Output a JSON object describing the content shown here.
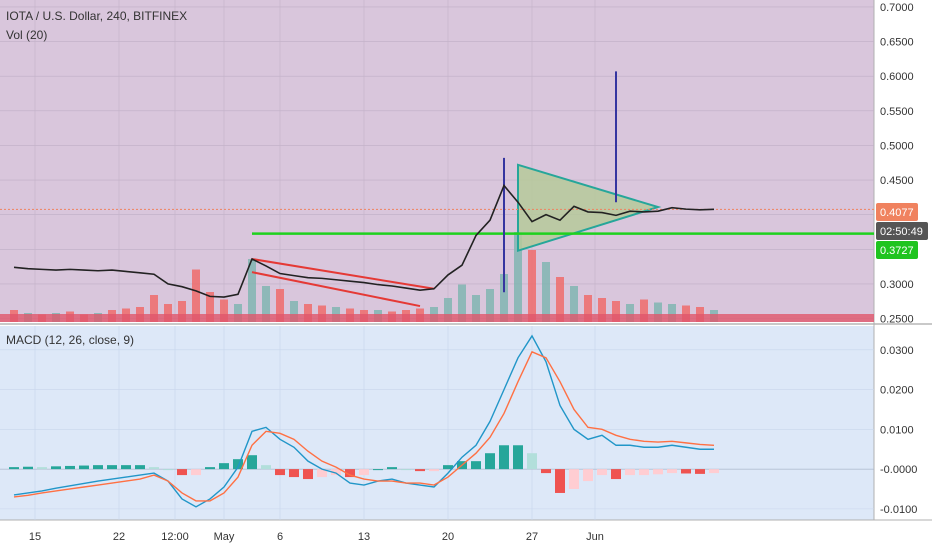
{
  "header": {
    "symbol_line": "IOTA / U.S. Dollar, 240, BITFINEX",
    "volume_label": "Vol (20)",
    "macd_label": "MACD (12, 26, close, 9)"
  },
  "price_tags": {
    "last_price": "0.4077",
    "countdown": "02:50:49",
    "support_level": "0.3727"
  },
  "colors": {
    "price_bg": "#d9c6dc",
    "macd_bg": "#dde8f8",
    "wedge": "#e53935",
    "triangle_fill": "#b5c99a",
    "triangle_stroke": "#26a69a",
    "support_line": "#1ed11e",
    "target_line": "#3535a0",
    "volume_up": "#80b5b2",
    "volume_down": "#ef6b6b",
    "macd_line": "#2196c8",
    "signal_line": "#ff7043",
    "hist_up_strong": "#26a69a",
    "hist_up_weak": "#b2dfdb",
    "hist_down_strong": "#ef5350",
    "hist_down_weak": "#ffcdd2",
    "last_tag": "#f0825f",
    "countdown_tag": "#555555",
    "support_tag": "#1fc41f"
  },
  "chart_data": [
    {
      "type": "line",
      "panel": "price",
      "y_ticks": [
        "0.7000",
        "0.6500",
        "0.6000",
        "0.5500",
        "0.5000",
        "0.4500",
        "0.4000",
        "0.3500",
        "0.3000",
        "0.2500"
      ],
      "ylim": [
        0.245,
        0.71
      ],
      "x": [
        0,
        1,
        2,
        3,
        4,
        5,
        6,
        7,
        8,
        9,
        10,
        11,
        12,
        13,
        14,
        15,
        16,
        17,
        18,
        19,
        20,
        21,
        22,
        23,
        24,
        25,
        26,
        27,
        28,
        29,
        30,
        31,
        32,
        33,
        34,
        35,
        36,
        37,
        38,
        39,
        40,
        41,
        42,
        43,
        44,
        45,
        46,
        47,
        48,
        49,
        50
      ],
      "close": [
        0.324,
        0.322,
        0.321,
        0.32,
        0.321,
        0.32,
        0.319,
        0.32,
        0.318,
        0.316,
        0.314,
        0.3,
        0.296,
        0.29,
        0.282,
        0.281,
        0.285,
        0.336,
        0.326,
        0.315,
        0.312,
        0.309,
        0.308,
        0.306,
        0.304,
        0.302,
        0.299,
        0.297,
        0.294,
        0.291,
        0.293,
        0.313,
        0.327,
        0.37,
        0.392,
        0.442,
        0.418,
        0.39,
        0.4,
        0.392,
        0.412,
        0.404,
        0.403,
        0.399,
        0.405,
        0.404,
        0.405,
        0.41,
        0.408,
        0.407,
        0.4077
      ],
      "annotations": {
        "support_level": 0.3727,
        "last_price": 0.4077,
        "wedge_upper": [
          [
            0.336,
            17
          ],
          [
            0.293,
            30
          ]
        ],
        "wedge_lower": [
          [
            0.317,
            17
          ],
          [
            0.268,
            29
          ]
        ],
        "triangle": [
          [
            0.472,
            36
          ],
          [
            0.348,
            36
          ],
          [
            0.411,
            46
          ]
        ],
        "target_line": [
          [
            0.418,
            43
          ],
          [
            0.607,
            43
          ]
        ],
        "vertical_move": [
          [
            0.288,
            35
          ],
          [
            0.482,
            35
          ]
        ]
      },
      "volume": [
        8,
        6,
        5,
        6,
        7,
        5,
        6,
        8,
        9,
        10,
        18,
        12,
        14,
        35,
        20,
        15,
        12,
        42,
        24,
        22,
        14,
        12,
        11,
        10,
        9,
        8,
        8,
        7,
        8,
        9,
        10,
        16,
        25,
        18,
        22,
        32,
        60,
        48,
        40,
        30,
        24,
        18,
        16,
        14,
        12,
        15,
        13,
        12,
        11,
        10,
        8
      ],
      "volume_up": [
        false,
        true,
        false,
        true,
        false,
        false,
        true,
        false,
        false,
        false,
        false,
        false,
        false,
        false,
        false,
        false,
        true,
        true,
        true,
        false,
        true,
        false,
        false,
        true,
        false,
        false,
        true,
        false,
        false,
        false,
        true,
        true,
        true,
        true,
        true,
        true,
        true,
        false,
        true,
        false,
        true,
        false,
        false,
        false,
        true,
        false,
        true,
        true,
        false,
        false,
        true
      ]
    },
    {
      "type": "line",
      "panel": "macd",
      "title": "MACD (12, 26, close, 9)",
      "y_ticks": [
        "0.0300",
        "0.0200",
        "0.0100",
        "-0.0000",
        "-0.0100"
      ],
      "ylim": [
        -0.0128,
        0.036
      ],
      "x": [
        0,
        1,
        2,
        3,
        4,
        5,
        6,
        7,
        8,
        9,
        10,
        11,
        12,
        13,
        14,
        15,
        16,
        17,
        18,
        19,
        20,
        21,
        22,
        23,
        24,
        25,
        26,
        27,
        28,
        29,
        30,
        31,
        32,
        33,
        34,
        35,
        36,
        37,
        38,
        39,
        40,
        41,
        42,
        43,
        44,
        45,
        46,
        47,
        48,
        49,
        50
      ],
      "series": [
        {
          "name": "MACD",
          "values": [
            -0.0065,
            -0.006,
            -0.0055,
            -0.0048,
            -0.0042,
            -0.0036,
            -0.003,
            -0.0025,
            -0.002,
            -0.0015,
            -0.001,
            -0.003,
            -0.0075,
            -0.0095,
            -0.0075,
            -0.0045,
            0.0005,
            0.0095,
            0.0105,
            0.0075,
            0.0055,
            0.002,
            0.0,
            -0.001,
            -0.0035,
            -0.004,
            -0.003,
            -0.0025,
            -0.0035,
            -0.004,
            -0.0045,
            -0.001,
            0.003,
            0.006,
            0.012,
            0.02,
            0.028,
            0.0335,
            0.027,
            0.016,
            0.01,
            0.0075,
            0.0085,
            0.006,
            0.006,
            0.0055,
            0.0055,
            0.006,
            0.0055,
            0.005,
            0.005
          ]
        },
        {
          "name": "Signal",
          "values": [
            -0.007,
            -0.0066,
            -0.006,
            -0.0055,
            -0.005,
            -0.0045,
            -0.004,
            -0.0035,
            -0.003,
            -0.0025,
            -0.0015,
            -0.003,
            -0.006,
            -0.008,
            -0.008,
            -0.006,
            -0.002,
            0.006,
            0.0095,
            0.009,
            0.0075,
            0.0045,
            0.002,
            0.0005,
            -0.0015,
            -0.0025,
            -0.003,
            -0.003,
            -0.0035,
            -0.0035,
            -0.004,
            -0.002,
            0.001,
            0.004,
            0.008,
            0.014,
            0.022,
            0.0295,
            0.028,
            0.022,
            0.015,
            0.0105,
            0.01,
            0.0085,
            0.0075,
            0.007,
            0.0068,
            0.007,
            0.0066,
            0.0062,
            0.006
          ]
        }
      ],
      "histogram": [
        0.0005,
        0.0006,
        0.0005,
        0.0007,
        0.0008,
        0.0009,
        0.001,
        0.001,
        0.001,
        0.001,
        0.0005,
        0.0,
        -0.0015,
        -0.0015,
        0.0005,
        0.0015,
        0.0025,
        0.0035,
        0.001,
        -0.0015,
        -0.002,
        -0.0025,
        -0.002,
        -0.0015,
        -0.002,
        -0.0015,
        0.0,
        0.0005,
        0.0,
        -0.0005,
        -0.0005,
        0.001,
        0.002,
        0.002,
        0.004,
        0.006,
        0.006,
        0.004,
        -0.001,
        -0.006,
        -0.005,
        -0.003,
        -0.0015,
        -0.0025,
        -0.0015,
        -0.0015,
        -0.0013,
        -0.001,
        -0.0011,
        -0.0012,
        -0.001
      ]
    },
    {
      "type": "line",
      "panel": "time-axis",
      "x_ticks": [
        "15",
        "22",
        "12:00",
        "May",
        "6",
        "13",
        "20",
        "27",
        "Jun"
      ],
      "x_tick_positions": [
        1.5,
        7.5,
        11.5,
        15,
        19,
        25,
        31,
        37,
        41.5
      ]
    }
  ]
}
